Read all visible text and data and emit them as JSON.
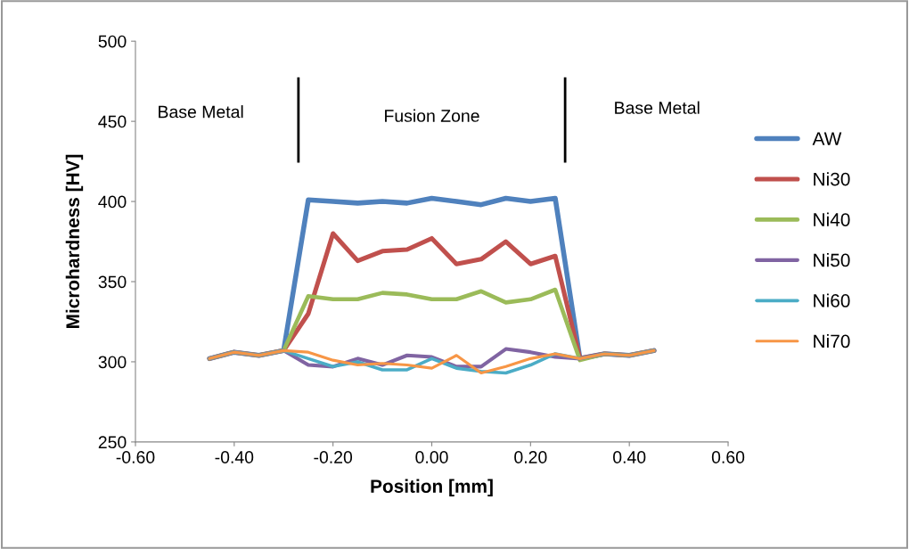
{
  "chart_data": {
    "type": "line",
    "xlabel": "Position [mm]",
    "ylabel": "Microhardness [HV]",
    "x": [
      -0.45,
      -0.4,
      -0.35,
      -0.3,
      -0.25,
      -0.2,
      -0.15,
      -0.1,
      -0.05,
      0.0,
      0.05,
      0.1,
      0.15,
      0.2,
      0.25,
      0.3,
      0.35,
      0.4,
      0.45
    ],
    "series": [
      {
        "name": "AW",
        "color": "#4f81bd",
        "values": [
          302,
          306,
          304,
          307,
          401,
          400,
          399,
          400,
          399,
          402,
          400,
          398,
          402,
          400,
          402,
          302,
          305,
          304,
          307
        ]
      },
      {
        "name": "Ni30",
        "color": "#c0504d",
        "values": [
          302,
          306,
          304,
          307,
          330,
          380,
          363,
          369,
          370,
          377,
          361,
          364,
          375,
          361,
          366,
          302,
          305,
          304,
          307
        ]
      },
      {
        "name": "Ni40",
        "color": "#9bbb59",
        "values": [
          302,
          306,
          304,
          307,
          341,
          339,
          339,
          343,
          342,
          339,
          339,
          344,
          337,
          339,
          345,
          301,
          305,
          304,
          307
        ]
      },
      {
        "name": "Ni50",
        "color": "#8064a2",
        "values": [
          302,
          306,
          304,
          307,
          298,
          297,
          302,
          298,
          304,
          303,
          297,
          297,
          308,
          306,
          303,
          302,
          305,
          304,
          307
        ]
      },
      {
        "name": "Ni60",
        "color": "#4bacc6",
        "values": [
          302,
          306,
          304,
          307,
          302,
          297,
          300,
          295,
          295,
          302,
          296,
          294,
          293,
          298,
          305,
          302,
          305,
          304,
          307
        ]
      },
      {
        "name": "Ni70",
        "color": "#f79646",
        "values": [
          302,
          306,
          304,
          307,
          306,
          301,
          298,
          299,
          298,
          296,
          304,
          293,
          297,
          302,
          305,
          302,
          305,
          304,
          307
        ]
      }
    ],
    "xlim": [
      -0.6,
      0.6
    ],
    "xticks": [
      {
        "value": -0.6,
        "label": "-0.60"
      },
      {
        "value": -0.4,
        "label": "-0.40"
      },
      {
        "value": -0.2,
        "label": "-0.20"
      },
      {
        "value": 0,
        "label": "0.00"
      },
      {
        "value": 0.2,
        "label": "0.20"
      },
      {
        "value": 0.4,
        "label": "0.40"
      },
      {
        "value": 0.6,
        "label": "0.60"
      }
    ],
    "ylim": [
      250,
      500
    ],
    "yticks": [
      250,
      300,
      350,
      400,
      450,
      500
    ],
    "ref_lines": [
      {
        "axis": "x",
        "value": -0.27,
        "color": "#000000"
      },
      {
        "axis": "x",
        "value": 0.27,
        "color": "#000000"
      }
    ],
    "annotations": [
      "Base Metal",
      "Fusion Zone",
      "Base Metal"
    ],
    "grid": false,
    "legend": "right",
    "marker": "none",
    "line_style": "solid"
  }
}
